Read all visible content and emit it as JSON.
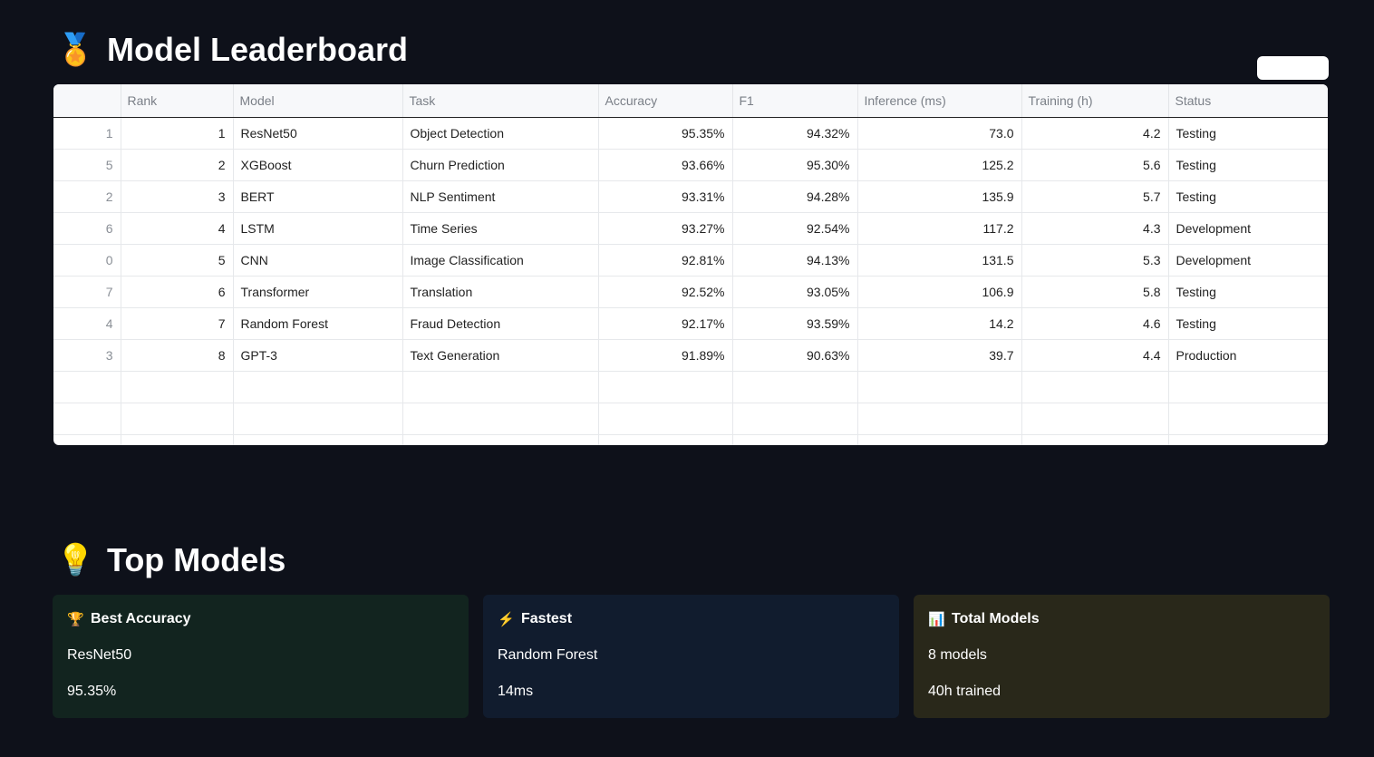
{
  "leaderboard": {
    "emoji": "🏅",
    "title": "Model Leaderboard",
    "columns": [
      "",
      "Rank",
      "Model",
      "Task",
      "Accuracy",
      "F1",
      "Inference (ms)",
      "Training (h)",
      "Status"
    ],
    "rows": [
      [
        "1",
        "1",
        "ResNet50",
        "Object Detection",
        "95.35%",
        "94.32%",
        "73.0",
        "4.2",
        "Testing"
      ],
      [
        "5",
        "2",
        "XGBoost",
        "Churn Prediction",
        "93.66%",
        "95.30%",
        "125.2",
        "5.6",
        "Testing"
      ],
      [
        "2",
        "3",
        "BERT",
        "NLP Sentiment",
        "93.31%",
        "94.28%",
        "135.9",
        "5.7",
        "Testing"
      ],
      [
        "6",
        "4",
        "LSTM",
        "Time Series",
        "93.27%",
        "92.54%",
        "117.2",
        "4.3",
        "Development"
      ],
      [
        "0",
        "5",
        "CNN",
        "Image Classification",
        "92.81%",
        "94.13%",
        "131.5",
        "5.3",
        "Development"
      ],
      [
        "7",
        "6",
        "Transformer",
        "Translation",
        "92.52%",
        "93.05%",
        "106.9",
        "5.8",
        "Testing"
      ],
      [
        "4",
        "7",
        "Random Forest",
        "Fraud Detection",
        "92.17%",
        "93.59%",
        "14.2",
        "4.6",
        "Testing"
      ],
      [
        "3",
        "8",
        "GPT-3",
        "Text Generation",
        "91.89%",
        "90.63%",
        "39.7",
        "4.4",
        "Production"
      ]
    ]
  },
  "top_models": {
    "emoji": "💡",
    "title": "Top Models",
    "cards": [
      {
        "icon": "🏆",
        "title": "Best Accuracy",
        "line1": "ResNet50",
        "line2": "95.35%"
      },
      {
        "icon": "⚡",
        "title": "Fastest",
        "line1": "Random Forest",
        "line2": "14ms"
      },
      {
        "icon": "📊",
        "title": "Total Models",
        "line1": "8 models",
        "line2": "40h trained"
      }
    ]
  },
  "colors": {
    "background": "#0e111a",
    "card_green": "#12241f",
    "card_blue": "#111c2e",
    "card_olive": "#29281a"
  }
}
